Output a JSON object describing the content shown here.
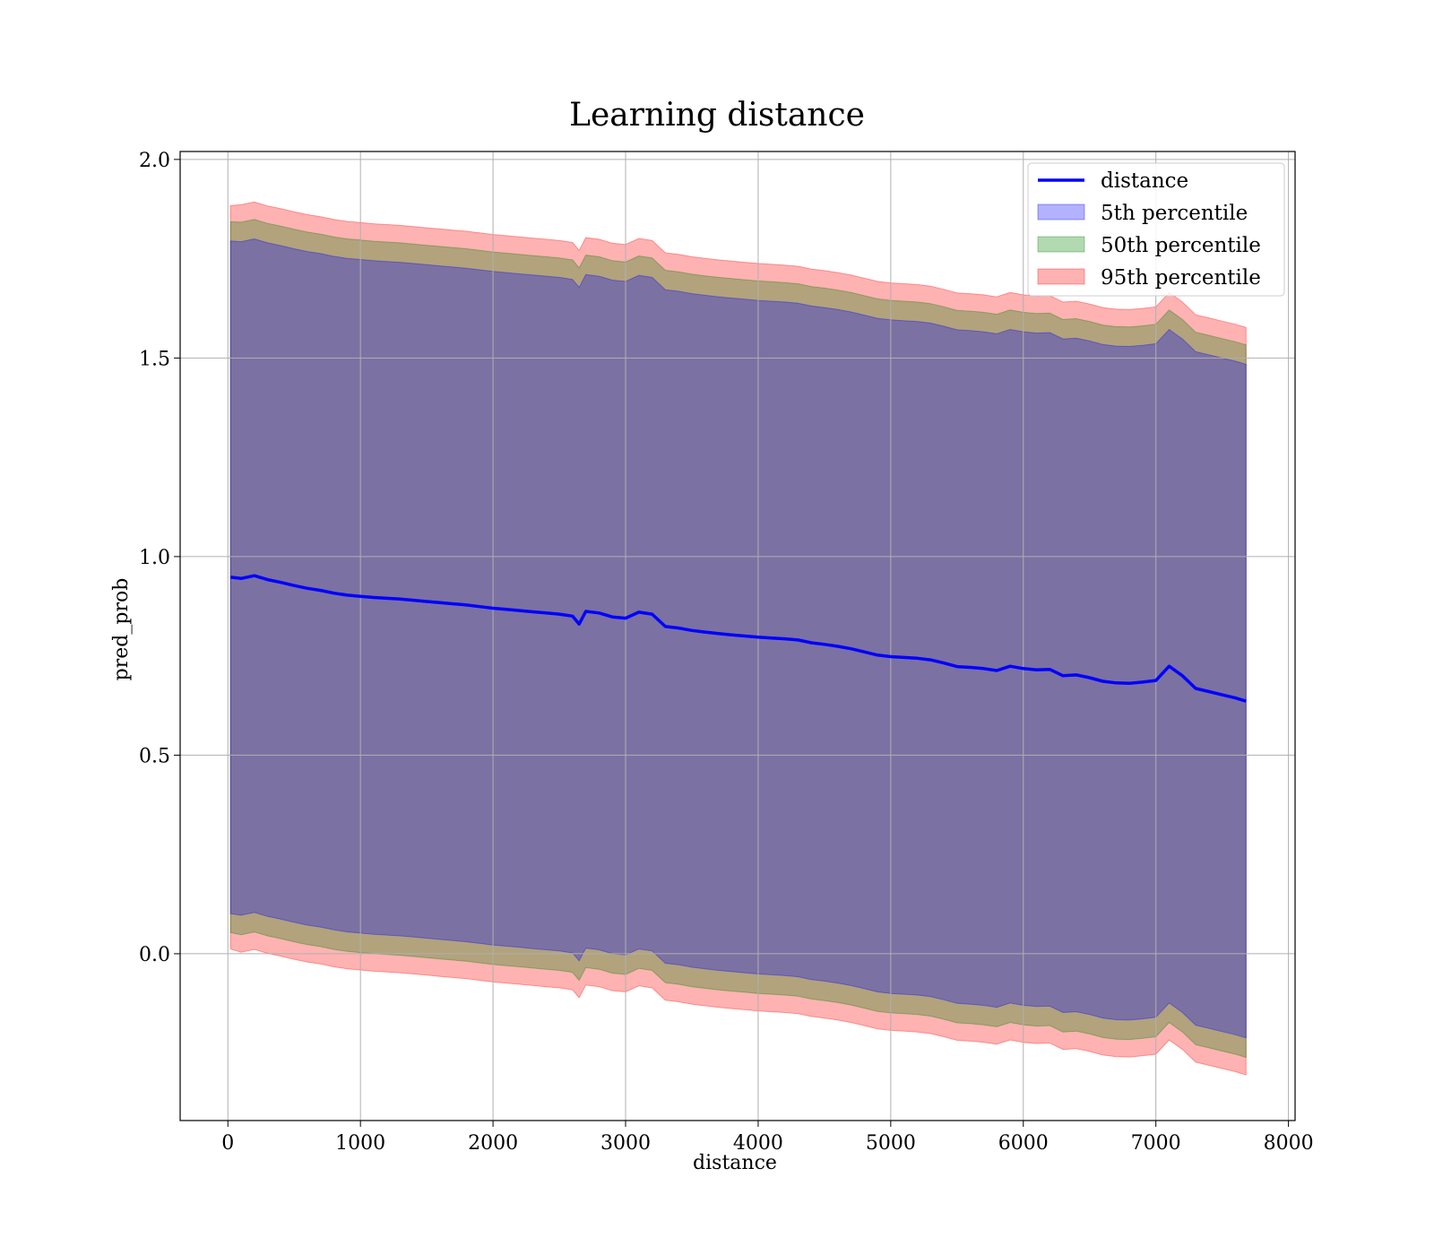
{
  "chart_data": {
    "type": "line",
    "title": "Learning distance",
    "xlabel": "distance",
    "ylabel": "pred_prob",
    "xlim": [
      -360,
      8050
    ],
    "ylim": [
      -0.42,
      2.02
    ],
    "xticks": [
      0,
      1000,
      2000,
      3000,
      4000,
      5000,
      6000,
      7000,
      8000
    ],
    "xtick_labels": [
      "0",
      "1000",
      "2000",
      "3000",
      "4000",
      "5000",
      "6000",
      "7000",
      "8000"
    ],
    "yticks": [
      0.0,
      0.5,
      1.0,
      1.5,
      2.0
    ],
    "ytick_labels": [
      "0.0",
      "0.5",
      "1.0",
      "1.5",
      "2.0"
    ],
    "grid": true,
    "legend_position": "top-right",
    "colors": {
      "line": "#0000ff",
      "band5": "#0000ff",
      "band50": "#008000",
      "band95": "#ff0000",
      "grid": "#b0b0b0"
    },
    "line_series": {
      "name": "distance",
      "x": [
        20,
        100,
        200,
        300,
        400,
        500,
        600,
        700,
        800,
        900,
        1000,
        1100,
        1200,
        1300,
        1400,
        1500,
        1600,
        1700,
        1800,
        1900,
        2000,
        2100,
        2200,
        2300,
        2400,
        2500,
        2600,
        2650,
        2700,
        2800,
        2900,
        3000,
        3100,
        3200,
        3300,
        3400,
        3500,
        3600,
        3700,
        3800,
        3900,
        4000,
        4100,
        4200,
        4300,
        4400,
        4500,
        4600,
        4700,
        4800,
        4900,
        5000,
        5100,
        5200,
        5300,
        5400,
        5500,
        5600,
        5700,
        5800,
        5900,
        6000,
        6100,
        6200,
        6300,
        6400,
        6500,
        6600,
        6700,
        6800,
        6900,
        7000,
        7100,
        7200,
        7300,
        7400,
        7500,
        7600,
        7680
      ],
      "values": [
        0.948,
        0.945,
        0.952,
        0.942,
        0.935,
        0.927,
        0.92,
        0.915,
        0.908,
        0.903,
        0.9,
        0.897,
        0.895,
        0.893,
        0.89,
        0.887,
        0.884,
        0.881,
        0.878,
        0.874,
        0.87,
        0.867,
        0.864,
        0.861,
        0.858,
        0.855,
        0.85,
        0.83,
        0.862,
        0.858,
        0.848,
        0.845,
        0.86,
        0.855,
        0.824,
        0.82,
        0.814,
        0.81,
        0.806,
        0.803,
        0.8,
        0.797,
        0.795,
        0.793,
        0.79,
        0.783,
        0.779,
        0.774,
        0.768,
        0.76,
        0.752,
        0.748,
        0.746,
        0.744,
        0.74,
        0.732,
        0.723,
        0.721,
        0.718,
        0.713,
        0.724,
        0.718,
        0.715,
        0.716,
        0.7,
        0.702,
        0.695,
        0.686,
        0.682,
        0.681,
        0.684,
        0.688,
        0.724,
        0.7,
        0.668,
        0.66,
        0.652,
        0.644,
        0.636
      ]
    },
    "bands": [
      {
        "name": "5th percentile",
        "x": [
          20,
          100,
          200,
          300,
          400,
          500,
          600,
          700,
          800,
          900,
          1000,
          1100,
          1200,
          1300,
          1400,
          1500,
          1600,
          1700,
          1800,
          1900,
          2000,
          2100,
          2200,
          2300,
          2400,
          2500,
          2600,
          2650,
          2700,
          2800,
          2900,
          3000,
          3100,
          3200,
          3300,
          3400,
          3500,
          3600,
          3700,
          3800,
          3900,
          4000,
          4100,
          4200,
          4300,
          4400,
          4500,
          4600,
          4700,
          4800,
          4900,
          5000,
          5100,
          5200,
          5300,
          5400,
          5500,
          5600,
          5700,
          5800,
          5900,
          6000,
          6100,
          6200,
          6300,
          6400,
          6500,
          6600,
          6700,
          6800,
          6900,
          7000,
          7100,
          7200,
          7300,
          7400,
          7500,
          7600,
          7680
        ],
        "upper": [
          1.795,
          1.793,
          1.8,
          1.79,
          1.783,
          1.775,
          1.768,
          1.763,
          1.756,
          1.751,
          1.748,
          1.745,
          1.743,
          1.741,
          1.738,
          1.735,
          1.732,
          1.729,
          1.726,
          1.722,
          1.718,
          1.715,
          1.712,
          1.709,
          1.706,
          1.703,
          1.698,
          1.678,
          1.71,
          1.706,
          1.696,
          1.693,
          1.708,
          1.703,
          1.672,
          1.668,
          1.662,
          1.658,
          1.654,
          1.651,
          1.648,
          1.645,
          1.643,
          1.641,
          1.638,
          1.631,
          1.627,
          1.622,
          1.616,
          1.608,
          1.6,
          1.596,
          1.594,
          1.592,
          1.588,
          1.58,
          1.571,
          1.569,
          1.566,
          1.561,
          1.572,
          1.566,
          1.563,
          1.564,
          1.548,
          1.55,
          1.543,
          1.534,
          1.53,
          1.529,
          1.532,
          1.536,
          1.572,
          1.548,
          1.516,
          1.508,
          1.5,
          1.492,
          1.484
        ],
        "lower": [
          0.101,
          0.097,
          0.104,
          0.094,
          0.087,
          0.079,
          0.072,
          0.067,
          0.06,
          0.055,
          0.052,
          0.049,
          0.047,
          0.045,
          0.042,
          0.039,
          0.036,
          0.033,
          0.03,
          0.026,
          0.022,
          0.019,
          0.016,
          0.013,
          0.01,
          0.007,
          0.002,
          -0.018,
          0.014,
          0.01,
          0.0,
          -0.003,
          0.012,
          0.007,
          -0.024,
          -0.028,
          -0.034,
          -0.038,
          -0.042,
          -0.045,
          -0.048,
          -0.051,
          -0.053,
          -0.055,
          -0.058,
          -0.065,
          -0.069,
          -0.074,
          -0.08,
          -0.088,
          -0.096,
          -0.1,
          -0.102,
          -0.104,
          -0.108,
          -0.116,
          -0.125,
          -0.127,
          -0.13,
          -0.135,
          -0.124,
          -0.13,
          -0.133,
          -0.132,
          -0.148,
          -0.146,
          -0.153,
          -0.162,
          -0.166,
          -0.167,
          -0.164,
          -0.16,
          -0.124,
          -0.148,
          -0.18,
          -0.188,
          -0.196,
          -0.204,
          -0.212
        ]
      },
      {
        "name": "50th percentile",
        "x": [
          20,
          100,
          200,
          300,
          400,
          500,
          600,
          700,
          800,
          900,
          1000,
          1100,
          1200,
          1300,
          1400,
          1500,
          1600,
          1700,
          1800,
          1900,
          2000,
          2100,
          2200,
          2300,
          2400,
          2500,
          2600,
          2650,
          2700,
          2800,
          2900,
          3000,
          3100,
          3200,
          3300,
          3400,
          3500,
          3600,
          3700,
          3800,
          3900,
          4000,
          4100,
          4200,
          4300,
          4400,
          4500,
          4600,
          4700,
          4800,
          4900,
          5000,
          5100,
          5200,
          5300,
          5400,
          5500,
          5600,
          5700,
          5800,
          5900,
          6000,
          6100,
          6200,
          6300,
          6400,
          6500,
          6600,
          6700,
          6800,
          6900,
          7000,
          7100,
          7200,
          7300,
          7400,
          7500,
          7600,
          7680
        ],
        "upper": [
          1.843,
          1.842,
          1.849,
          1.839,
          1.832,
          1.824,
          1.817,
          1.812,
          1.805,
          1.8,
          1.797,
          1.794,
          1.792,
          1.79,
          1.787,
          1.784,
          1.781,
          1.778,
          1.775,
          1.771,
          1.767,
          1.764,
          1.761,
          1.758,
          1.755,
          1.752,
          1.747,
          1.727,
          1.759,
          1.755,
          1.745,
          1.742,
          1.757,
          1.752,
          1.721,
          1.717,
          1.711,
          1.707,
          1.703,
          1.7,
          1.697,
          1.694,
          1.692,
          1.69,
          1.687,
          1.68,
          1.676,
          1.671,
          1.665,
          1.657,
          1.649,
          1.645,
          1.643,
          1.641,
          1.637,
          1.629,
          1.62,
          1.618,
          1.615,
          1.61,
          1.621,
          1.615,
          1.612,
          1.613,
          1.597,
          1.599,
          1.592,
          1.583,
          1.579,
          1.578,
          1.581,
          1.585,
          1.621,
          1.597,
          1.565,
          1.557,
          1.549,
          1.541,
          1.533
        ],
        "lower": [
          0.053,
          0.048,
          0.055,
          0.045,
          0.038,
          0.03,
          0.023,
          0.018,
          0.011,
          0.006,
          0.003,
          0.0,
          -0.002,
          -0.004,
          -0.007,
          -0.01,
          -0.013,
          -0.016,
          -0.019,
          -0.023,
          -0.027,
          -0.03,
          -0.033,
          -0.036,
          -0.039,
          -0.042,
          -0.047,
          -0.067,
          -0.035,
          -0.039,
          -0.049,
          -0.052,
          -0.037,
          -0.042,
          -0.073,
          -0.077,
          -0.083,
          -0.087,
          -0.091,
          -0.094,
          -0.097,
          -0.1,
          -0.102,
          -0.104,
          -0.107,
          -0.114,
          -0.118,
          -0.123,
          -0.129,
          -0.137,
          -0.145,
          -0.149,
          -0.151,
          -0.153,
          -0.157,
          -0.165,
          -0.174,
          -0.176,
          -0.179,
          -0.184,
          -0.173,
          -0.179,
          -0.182,
          -0.181,
          -0.197,
          -0.195,
          -0.202,
          -0.211,
          -0.215,
          -0.216,
          -0.213,
          -0.209,
          -0.173,
          -0.197,
          -0.229,
          -0.237,
          -0.245,
          -0.253,
          -0.261
        ]
      },
      {
        "name": "95th percentile",
        "x": [
          20,
          100,
          200,
          300,
          400,
          500,
          600,
          700,
          800,
          900,
          1000,
          1100,
          1200,
          1300,
          1400,
          1500,
          1600,
          1700,
          1800,
          1900,
          2000,
          2100,
          2200,
          2300,
          2400,
          2500,
          2600,
          2650,
          2700,
          2800,
          2900,
          3000,
          3100,
          3200,
          3300,
          3400,
          3500,
          3600,
          3700,
          3800,
          3900,
          4000,
          4100,
          4200,
          4300,
          4400,
          4500,
          4600,
          4700,
          4800,
          4900,
          5000,
          5100,
          5200,
          5300,
          5400,
          5500,
          5600,
          5700,
          5800,
          5900,
          6000,
          6100,
          6200,
          6300,
          6400,
          6500,
          6600,
          6700,
          6800,
          6900,
          7000,
          7100,
          7200,
          7300,
          7400,
          7500,
          7600,
          7680
        ],
        "upper": [
          1.884,
          1.886,
          1.893,
          1.883,
          1.876,
          1.868,
          1.861,
          1.856,
          1.849,
          1.844,
          1.841,
          1.838,
          1.836,
          1.834,
          1.831,
          1.828,
          1.825,
          1.822,
          1.819,
          1.815,
          1.811,
          1.808,
          1.805,
          1.802,
          1.799,
          1.796,
          1.791,
          1.771,
          1.803,
          1.799,
          1.789,
          1.786,
          1.801,
          1.796,
          1.765,
          1.761,
          1.755,
          1.751,
          1.747,
          1.744,
          1.741,
          1.738,
          1.736,
          1.734,
          1.731,
          1.724,
          1.72,
          1.715,
          1.709,
          1.701,
          1.693,
          1.689,
          1.687,
          1.685,
          1.681,
          1.673,
          1.664,
          1.662,
          1.659,
          1.654,
          1.665,
          1.659,
          1.656,
          1.657,
          1.641,
          1.643,
          1.636,
          1.627,
          1.623,
          1.622,
          1.625,
          1.629,
          1.665,
          1.641,
          1.609,
          1.601,
          1.593,
          1.585,
          1.577
        ],
        "lower": [
          0.012,
          0.004,
          0.011,
          0.001,
          -0.006,
          -0.014,
          -0.021,
          -0.026,
          -0.033,
          -0.038,
          -0.041,
          -0.044,
          -0.046,
          -0.048,
          -0.051,
          -0.054,
          -0.057,
          -0.06,
          -0.063,
          -0.067,
          -0.071,
          -0.074,
          -0.077,
          -0.08,
          -0.083,
          -0.086,
          -0.091,
          -0.111,
          -0.079,
          -0.083,
          -0.093,
          -0.096,
          -0.081,
          -0.086,
          -0.117,
          -0.121,
          -0.127,
          -0.131,
          -0.135,
          -0.138,
          -0.141,
          -0.144,
          -0.146,
          -0.148,
          -0.151,
          -0.158,
          -0.162,
          -0.167,
          -0.173,
          -0.181,
          -0.189,
          -0.193,
          -0.195,
          -0.197,
          -0.201,
          -0.209,
          -0.218,
          -0.22,
          -0.223,
          -0.228,
          -0.217,
          -0.223,
          -0.226,
          -0.225,
          -0.241,
          -0.239,
          -0.246,
          -0.255,
          -0.259,
          -0.26,
          -0.257,
          -0.253,
          -0.217,
          -0.241,
          -0.273,
          -0.281,
          -0.289,
          -0.297,
          -0.305
        ]
      }
    ]
  }
}
